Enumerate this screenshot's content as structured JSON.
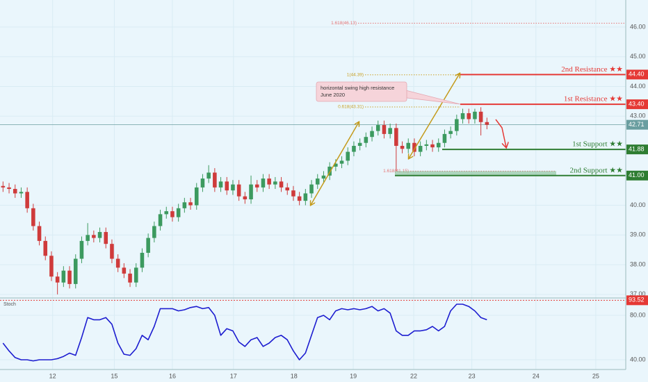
{
  "chart_data": {
    "type": "candlestick",
    "xlim": [
      0,
      103.45
    ],
    "xticks": [
      {
        "value": 8.7,
        "label": "12"
      },
      {
        "value": 18.9,
        "label": "15"
      },
      {
        "value": 28.5,
        "label": "16"
      },
      {
        "value": 38.6,
        "label": "17"
      },
      {
        "value": 48.6,
        "label": "18"
      },
      {
        "value": 58.4,
        "label": "19"
      },
      {
        "value": 68.4,
        "label": "22"
      },
      {
        "value": 78.0,
        "label": "23"
      },
      {
        "value": 88.6,
        "label": "24"
      },
      {
        "value": 98.5,
        "label": "25"
      }
    ],
    "ylim": [
      36.88,
      46.91
    ],
    "yticks": [
      {
        "value": 37,
        "label": "37.00"
      },
      {
        "value": 38,
        "label": "38.00"
      },
      {
        "value": 39,
        "label": "39.00"
      },
      {
        "value": 40,
        "label": "40.00"
      },
      {
        "value": 43,
        "label": "43.00"
      },
      {
        "value": 44,
        "label": "44.00"
      },
      {
        "value": 45,
        "label": "45.00"
      },
      {
        "value": 46,
        "label": "46.00"
      }
    ],
    "grid": true,
    "up_color": "#3c9a5f",
    "down_color": "#cf3b3b",
    "open": [
      40.65,
      40.6,
      40.55,
      40.4,
      40.45,
      39.9,
      39.3,
      38.8,
      38.3,
      37.6,
      37.4,
      37.8,
      37.35,
      38.2,
      38.8,
      39,
      38.9,
      39.1,
      38.7,
      38.2,
      37.9,
      37.7,
      37.4,
      37.9,
      38.4,
      38.9,
      39.3,
      39.7,
      39.8,
      39.6,
      39.9,
      40.1,
      40,
      40.6,
      40.9,
      41.1,
      40.6,
      40.8,
      40.5,
      40.7,
      40.3,
      40.2,
      40.7,
      40.6,
      40.9,
      40.7,
      40.8,
      40.6,
      40.5,
      40.3,
      40.15,
      40.4,
      40.7,
      40.9,
      41,
      41.3,
      41.4,
      41.5,
      41.8,
      42,
      42.1,
      42.3,
      42.5,
      42.7,
      42.4,
      42.6,
      42,
      41.9,
      42.1,
      41.8,
      42,
      42.05,
      41.95,
      42.1,
      42.4,
      42.5,
      42.9,
      43.1,
      42.9,
      43.15,
      42.8
    ],
    "high": [
      40.8,
      40.75,
      40.7,
      40.6,
      40.6,
      40.05,
      39.45,
      38.95,
      38.45,
      37.75,
      37.95,
      37.95,
      38.35,
      38.95,
      39.4,
      39.15,
      39.25,
      39.25,
      38.85,
      38.35,
      38.05,
      37.85,
      38.05,
      38.55,
      39.05,
      39.45,
      39.85,
      39.95,
      39.95,
      40.05,
      40.25,
      40.25,
      40.75,
      41.05,
      41.35,
      41.25,
      40.95,
      40.95,
      40.85,
      40.85,
      40.45,
      41,
      40.85,
      41.05,
      41.05,
      40.95,
      40.95,
      40.75,
      40.65,
      40.45,
      40.55,
      40.85,
      41.05,
      41.15,
      41.45,
      41.55,
      41.65,
      41.95,
      42.15,
      42.25,
      42.45,
      42.65,
      42.85,
      42.85,
      42.75,
      42.75,
      42.15,
      42.25,
      42.25,
      42.15,
      42.2,
      42.2,
      42.25,
      42.55,
      42.65,
      43.05,
      43.25,
      43.25,
      43.25,
      43.3,
      42.95
    ],
    "low": [
      40.45,
      40.4,
      40.25,
      40.25,
      39.75,
      39.15,
      38.65,
      38.15,
      37.45,
      37,
      37.25,
      37.2,
      37.2,
      38.05,
      38.65,
      38.75,
      38.75,
      38.55,
      38.05,
      37.75,
      37.55,
      37.25,
      37.25,
      37.75,
      38.25,
      38.75,
      39.15,
      39.55,
      39.45,
      39.45,
      39.75,
      39.85,
      39.85,
      40.45,
      40.75,
      40.45,
      40.45,
      40.35,
      40.35,
      40.15,
      40.05,
      40.05,
      40.45,
      40.45,
      40.55,
      40.55,
      40.45,
      40.35,
      40.15,
      40,
      40,
      40.25,
      40.55,
      40.75,
      40.85,
      41.15,
      41.25,
      41.35,
      41.65,
      41.85,
      41.95,
      42.15,
      42.35,
      42.25,
      42.25,
      41.15,
      41.75,
      41.75,
      41.65,
      41.65,
      41.85,
      41.8,
      41.8,
      41.95,
      42.25,
      42.35,
      42.75,
      42.75,
      42.75,
      42.35,
      42.56
    ],
    "close": [
      40.6,
      40.55,
      40.4,
      40.45,
      39.9,
      39.3,
      38.8,
      38.3,
      37.6,
      37.4,
      37.8,
      37.35,
      38.2,
      38.8,
      39,
      38.9,
      39.1,
      38.7,
      38.2,
      37.9,
      37.7,
      37.4,
      37.9,
      38.4,
      38.9,
      39.3,
      39.7,
      39.8,
      39.6,
      39.9,
      40.1,
      40,
      40.6,
      40.9,
      41.1,
      40.6,
      40.8,
      40.5,
      40.7,
      40.3,
      40.2,
      40.7,
      40.6,
      40.9,
      40.7,
      40.8,
      40.6,
      40.5,
      40.3,
      40.15,
      40.4,
      40.7,
      40.9,
      41,
      41.3,
      41.4,
      41.5,
      41.8,
      42,
      42.1,
      42.3,
      42.5,
      42.7,
      42.4,
      42.6,
      42,
      41.9,
      42.1,
      41.8,
      42,
      42.05,
      41.95,
      42.1,
      42.4,
      42.5,
      42.9,
      43.1,
      42.9,
      43.15,
      42.8,
      42.71
    ],
    "last_price": {
      "value": 42.71,
      "label": "42.71",
      "color": "#6a9ea0"
    },
    "levels": [
      {
        "name": "2nd Resistance ★★",
        "value": 44.4,
        "label": "44.40",
        "color": "#e53935"
      },
      {
        "name": "1st Resistance ★★",
        "value": 43.4,
        "label": "43.40",
        "color": "#e53935"
      },
      {
        "name": "1st Support ★★",
        "value": 41.88,
        "label": "41.88",
        "color": "#2e7d32"
      },
      {
        "name": "2nd Support ★★",
        "value": 41.0,
        "label": "41.00",
        "color": "#2e7d32"
      }
    ],
    "fib_levels": [
      {
        "label": "1.618(46.13)",
        "value": 46.13,
        "color": "#e57373"
      },
      {
        "label": "1(44.39)",
        "value": 44.39,
        "color": "#c9a227"
      },
      {
        "label": "0.618(43.31)",
        "value": 43.31,
        "color": "#c9a227"
      },
      {
        "label": "1.618(41.15)",
        "value": 41.15,
        "color": "#e57373"
      }
    ],
    "annotation": [
      "horizontal swing high resistance",
      "June 2020"
    ],
    "stoch": {
      "name": "Stoch",
      "color": "#1c1cd0",
      "ylim": [
        31.25,
        95.6
      ],
      "yticks": [
        {
          "value": 40,
          "label": "40.00"
        },
        {
          "value": 80,
          "label": "80.00"
        }
      ],
      "level": {
        "value": 93.52,
        "label": "93.52",
        "color": "#e53935"
      },
      "values": [
        55,
        48,
        42,
        40,
        40,
        39,
        40,
        40,
        40,
        41,
        43,
        46,
        44,
        60,
        78,
        76,
        76,
        78,
        72,
        55,
        45,
        44,
        50,
        62,
        58,
        70,
        86,
        86,
        86,
        84,
        85,
        87,
        88,
        86,
        87,
        80,
        62,
        68,
        66,
        56,
        52,
        58,
        60,
        52,
        55,
        60,
        62,
        58,
        48,
        40,
        46,
        62,
        78,
        80,
        76,
        84,
        86,
        85,
        86,
        85,
        86,
        88,
        84,
        86,
        82,
        66,
        62,
        62,
        66,
        66,
        67,
        70,
        66,
        70,
        84,
        90,
        90,
        88,
        84,
        78,
        76
      ]
    }
  }
}
